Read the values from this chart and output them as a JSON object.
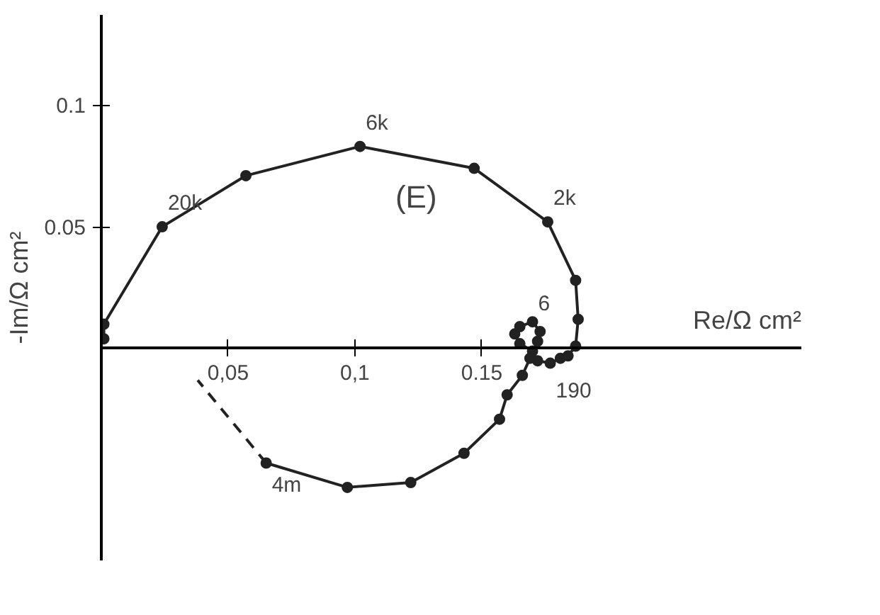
{
  "chart_data": {
    "type": "line",
    "xlabel": "Re/Ω cm²",
    "ylabel": "-Im/Ω cm²",
    "xlim": [
      0,
      0.276
    ],
    "ylim": [
      -0.087,
      0.137
    ],
    "xticks": [
      {
        "value": 0.05,
        "label": "0,05"
      },
      {
        "value": 0.1,
        "label": "0,1"
      },
      {
        "value": 0.15,
        "label": "0.15"
      }
    ],
    "yticks": [
      {
        "value": 0.05,
        "label": "0.05"
      },
      {
        "value": 0.1,
        "label": "0.1"
      }
    ],
    "grid": false,
    "series": [
      {
        "color": "#222222",
        "marker": "circle",
        "line_style": "solid",
        "x": [
          0.001,
          0.001,
          0.024,
          0.057,
          0.102,
          0.147,
          0.176,
          0.187,
          0.188,
          0.187,
          0.184,
          0.181,
          0.177,
          0.172,
          0.17,
          0.165,
          0.163,
          0.165,
          0.17,
          0.173,
          0.172,
          0.169,
          0.166,
          0.16,
          0.157,
          0.143,
          0.122,
          0.097,
          0.065
        ],
        "values": [
          0.004,
          0.01,
          0.05,
          0.071,
          0.083,
          0.074,
          0.052,
          0.028,
          0.012,
          0.001,
          -0.003,
          -0.004,
          -0.006,
          -0.005,
          -0.001,
          0.002,
          0.006,
          0.009,
          0.011,
          0.007,
          0.003,
          -0.004,
          -0.011,
          -0.019,
          -0.029,
          -0.043,
          -0.055,
          -0.057,
          -0.047
        ]
      },
      {
        "color": "#222222",
        "marker": "none",
        "line_style": "dashed",
        "x": [
          0.065,
          0.038
        ],
        "values": [
          -0.047,
          -0.013
        ]
      }
    ],
    "annotations": [
      {
        "text": "20k",
        "x": 0.024,
        "y": 0.05
      },
      {
        "text": "6k",
        "x": 0.102,
        "y": 0.083
      },
      {
        "text": "2k",
        "x": 0.176,
        "y": 0.052
      },
      {
        "text": "6",
        "x": 0.17,
        "y": 0.011
      },
      {
        "text": "190",
        "x": 0.177,
        "y": -0.006
      },
      {
        "text": "4m",
        "x": 0.065,
        "y": -0.047
      },
      "(E)"
    ]
  }
}
